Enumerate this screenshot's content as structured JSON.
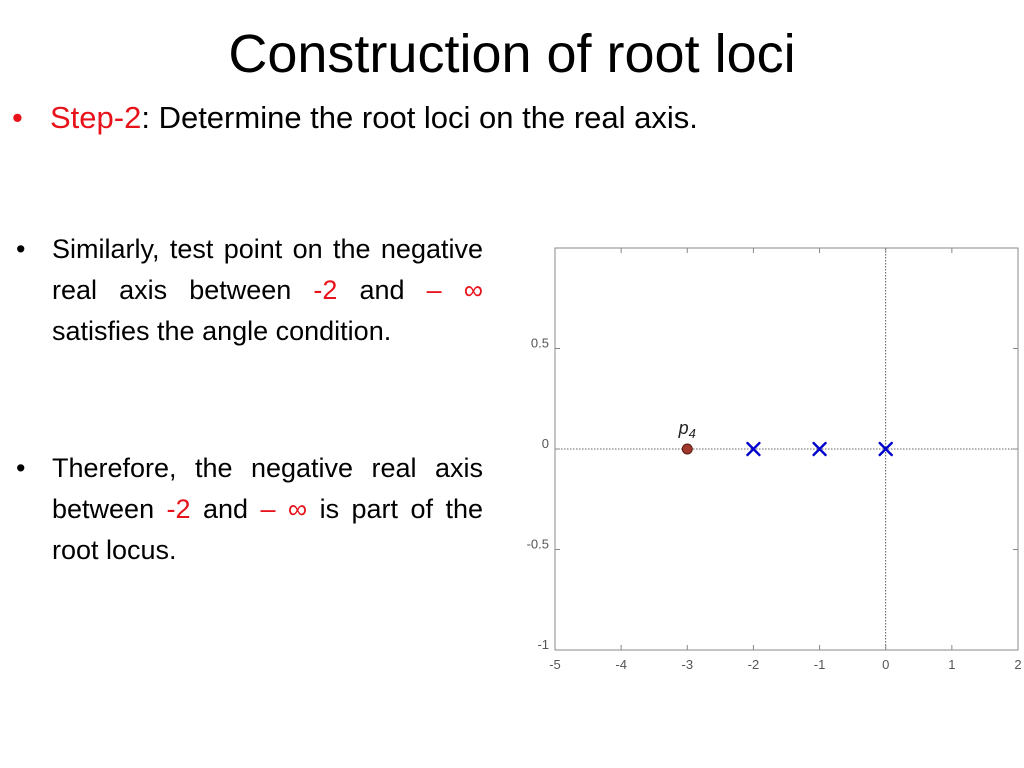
{
  "slide": {
    "title": "Construction of root loci",
    "step_bullet": "•",
    "step_label": "Step-2",
    "step_text": ": Determine the root loci on the real axis."
  },
  "points": [
    {
      "bullet": "•",
      "t1": "Similarly, test point on the negative real axis between ",
      "r1": "-2",
      "t2": " and ",
      "r2": "– ∞",
      "t3": " satisfies the angle condition."
    },
    {
      "bullet": "•",
      "t1": "Therefore, the negative real axis between ",
      "r1": "-2",
      "t2": " and ",
      "r2": "– ∞",
      "t3": " is part of the root locus."
    }
  ],
  "chart_data": {
    "type": "scatter",
    "xlim": [
      -5,
      2
    ],
    "ylim": [
      -1,
      1
    ],
    "xticks": [
      -5,
      -4,
      -3,
      -2,
      -1,
      0,
      1,
      2
    ],
    "yticks": [
      -1,
      -0.5,
      0,
      0.5
    ],
    "grid": false,
    "series": [
      {
        "marker": "x",
        "color": "#0000cc",
        "x": [
          -2,
          -1,
          0
        ],
        "y": [
          0,
          0,
          0
        ]
      },
      {
        "marker": "dot",
        "color": "#a0392b",
        "x": [
          -3
        ],
        "y": [
          0
        ]
      }
    ],
    "annotations": [
      {
        "text": "p4",
        "x": -3,
        "y": 0.1
      }
    ],
    "colors": {
      "accent": "#e8121a",
      "poles": "#0000cc",
      "test_point": "#a0392b"
    }
  }
}
